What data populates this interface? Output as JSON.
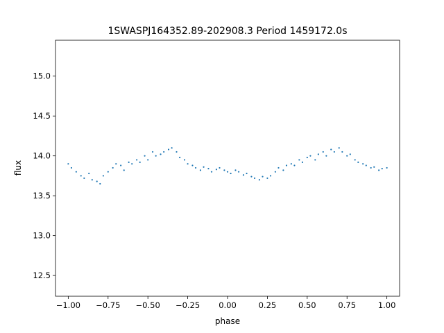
{
  "chart_data": {
    "type": "scatter",
    "title": "1SWASPJ164352.89-202908.3 Period 1459172.0s",
    "xlabel": "phase",
    "ylabel": "flux",
    "xlim": [
      -1.08,
      1.08
    ],
    "ylim": [
      12.24,
      15.45
    ],
    "xticks": [
      -1.0,
      -0.75,
      -0.5,
      -0.25,
      0.0,
      0.25,
      0.5,
      0.75,
      1.0
    ],
    "xtick_labels": [
      "−1.00",
      "−0.75",
      "−0.50",
      "−0.25",
      "0.00",
      "0.25",
      "0.50",
      "0.75",
      "1.00"
    ],
    "yticks": [
      12.5,
      13.0,
      13.5,
      14.0,
      14.5,
      15.0
    ],
    "ytick_labels": [
      "12.5",
      "13.0",
      "13.5",
      "14.0",
      "14.5",
      "15.0"
    ],
    "grid": false,
    "point_color": "#1f77b4",
    "series": [
      {
        "x": [
          -1.0,
          -0.98,
          -0.95,
          -0.92,
          -0.9,
          -0.87,
          -0.85,
          -0.82,
          -0.8,
          -0.78,
          -0.75,
          -0.72,
          -0.7,
          -0.67,
          -0.65,
          -0.62,
          -0.6,
          -0.57,
          -0.55,
          -0.52,
          -0.5,
          -0.47,
          -0.45,
          -0.42,
          -0.4,
          -0.37,
          -0.35,
          -0.32,
          -0.3,
          -0.27,
          -0.25,
          -0.22,
          -0.2,
          -0.17,
          -0.15,
          -0.12,
          -0.1,
          -0.07,
          -0.05,
          -0.02,
          0.0,
          0.02,
          0.05,
          0.07,
          0.1,
          0.12,
          0.15,
          0.17,
          0.2,
          0.22,
          0.25,
          0.27,
          0.3,
          0.32,
          0.35,
          0.37,
          0.4,
          0.42,
          0.45,
          0.47,
          0.5,
          0.52,
          0.55,
          0.57,
          0.6,
          0.62,
          0.65,
          0.67,
          0.7,
          0.72,
          0.75,
          0.77,
          0.8,
          0.82,
          0.85,
          0.87,
          0.9,
          0.92,
          0.95,
          0.97,
          1.0
        ],
        "y": [
          13.9,
          13.85,
          13.8,
          13.75,
          13.72,
          13.78,
          13.7,
          13.68,
          13.65,
          13.75,
          13.8,
          13.85,
          13.9,
          13.88,
          13.82,
          13.92,
          13.9,
          13.95,
          13.92,
          14.0,
          13.95,
          14.05,
          14.0,
          14.02,
          14.05,
          14.08,
          14.1,
          14.05,
          13.98,
          13.95,
          13.9,
          13.88,
          13.85,
          13.82,
          13.86,
          13.84,
          13.8,
          13.83,
          13.85,
          13.82,
          13.8,
          13.78,
          13.82,
          13.8,
          13.76,
          13.78,
          13.74,
          13.72,
          13.7,
          13.74,
          13.72,
          13.75,
          13.8,
          13.85,
          13.82,
          13.88,
          13.9,
          13.88,
          13.95,
          13.92,
          13.98,
          14.0,
          13.95,
          14.02,
          14.05,
          14.0,
          14.08,
          14.05,
          14.1,
          14.05,
          14.0,
          14.02,
          13.95,
          13.92,
          13.9,
          13.88,
          13.85,
          13.86,
          13.82,
          13.84,
          13.85
        ]
      }
    ]
  }
}
